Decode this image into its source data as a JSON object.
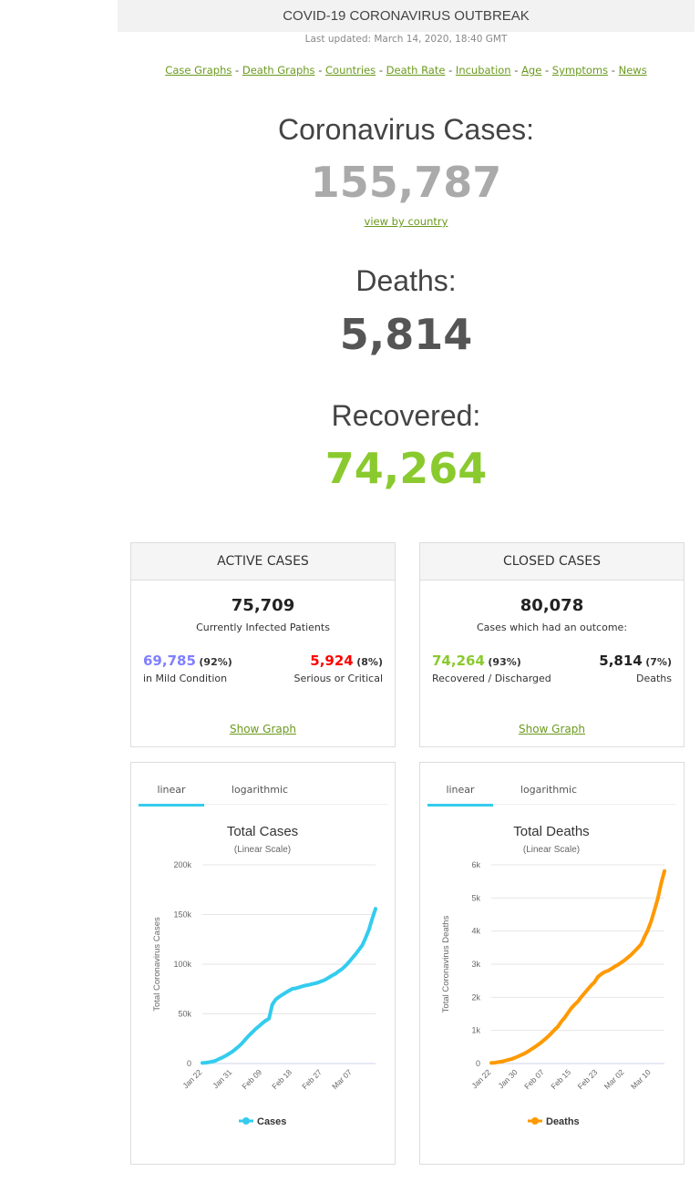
{
  "header": {
    "title": "COVID-19 CORONAVIRUS OUTBREAK",
    "updated": "Last updated: March 14, 2020, 18:40 GMT"
  },
  "nav": {
    "links": [
      "Case Graphs",
      "Death Graphs",
      "Countries",
      "Death Rate",
      "Incubation",
      "Age",
      "Symptoms",
      "News"
    ],
    "separator": " - "
  },
  "stats": {
    "cases_label": "Coronavirus Cases:",
    "cases_value": "155,787",
    "view_by_country": "view by country",
    "deaths_label": "Deaths:",
    "deaths_value": "5,814",
    "recovered_label": "Recovered:",
    "recovered_value": "74,264"
  },
  "colors": {
    "cases": "#aaaaaa",
    "deaths": "#555555",
    "recovered": "#8aca2e",
    "mild": "#8080ff",
    "critical": "#ff0000",
    "link": "#6b9a1e",
    "cases_line": "#33ccee",
    "deaths_line": "#ff9900"
  },
  "active": {
    "title": "ACTIVE CASES",
    "total": "75,709",
    "total_label": "Currently Infected Patients",
    "mild_value": "69,785",
    "mild_pct": "92%",
    "mild_label": "in Mild Condition",
    "critical_value": "5,924",
    "critical_pct": "8%",
    "critical_label": "Serious or Critical",
    "show_graph": "Show Graph"
  },
  "closed": {
    "title": "CLOSED CASES",
    "total": "80,078",
    "total_label": "Cases which had an outcome:",
    "recovered_value": "74,264",
    "recovered_pct": "93%",
    "recovered_label": "Recovered / Discharged",
    "deaths_value": "5,814",
    "deaths_pct": "7%",
    "deaths_label": "Deaths",
    "show_graph": "Show Graph"
  },
  "tabs": {
    "linear": "linear",
    "log": "logarithmic",
    "selected": "linear"
  },
  "chart_data": [
    {
      "type": "line",
      "title": "Total Cases",
      "subtitle": "(Linear Scale)",
      "ylabel": "Total Coronavirus Cases",
      "ylim": [
        0,
        200000
      ],
      "yticks": [
        0,
        50000,
        100000,
        150000,
        200000
      ],
      "ytick_labels": [
        "0",
        "50k",
        "100k",
        "150k",
        "200k"
      ],
      "xtick_labels": [
        "Jan 22",
        "Jan 31",
        "Feb 09",
        "Feb 18",
        "Feb 27",
        "Mar 07"
      ],
      "xtick_index": [
        0,
        9,
        18,
        27,
        36,
        45
      ],
      "legend": "Cases",
      "legend_position": "bottom",
      "series": [
        {
          "name": "Cases",
          "values": [
            580,
            845,
            1317,
            2015,
            2800,
            4581,
            6058,
            7813,
            9823,
            11950,
            14553,
            17391,
            20630,
            24545,
            28266,
            31439,
            34876,
            37552,
            40553,
            43099,
            45134,
            59287,
            64438,
            67100,
            69197,
            71329,
            73332,
            75184,
            75700,
            76677,
            77673,
            78651,
            79205,
            80087,
            80828,
            81820,
            83112,
            84615,
            86604,
            88585,
            90443,
            93016,
            95314,
            98425,
            102050,
            106099,
            109991,
            114381,
            118948,
            126214,
            134509,
            145483,
            155787
          ]
        }
      ]
    },
    {
      "type": "line",
      "title": "Total Deaths",
      "subtitle": "(Linear Scale)",
      "ylabel": "Total Coronavirus Deaths",
      "ylim": [
        0,
        6000
      ],
      "yticks": [
        0,
        1000,
        2000,
        3000,
        4000,
        5000,
        6000
      ],
      "ytick_labels": [
        "0",
        "1k",
        "2k",
        "3k",
        "4k",
        "5k",
        "6k"
      ],
      "xtick_labels": [
        "Jan 22",
        "Jan 30",
        "Feb 07",
        "Feb 15",
        "Feb 23",
        "Mar 02",
        "Mar 10"
      ],
      "xtick_index": [
        0,
        8,
        16,
        24,
        32,
        40,
        48
      ],
      "legend": "Deaths",
      "legend_position": "bottom",
      "series": [
        {
          "name": "Deaths",
          "values": [
            17,
            25,
            41,
            56,
            80,
            106,
            132,
            170,
            213,
            259,
            304,
            362,
            426,
            492,
            565,
            638,
            724,
            813,
            910,
            1018,
            1115,
            1261,
            1383,
            1526,
            1669,
            1775,
            1873,
            2009,
            2126,
            2247,
            2360,
            2460,
            2618,
            2699,
            2763,
            2800,
            2858,
            2923,
            2977,
            3050,
            3117,
            3202,
            3285,
            3387,
            3494,
            3599,
            3827,
            4025,
            4296,
            4628,
            4981,
            5429,
            5814
          ]
        }
      ]
    }
  ]
}
